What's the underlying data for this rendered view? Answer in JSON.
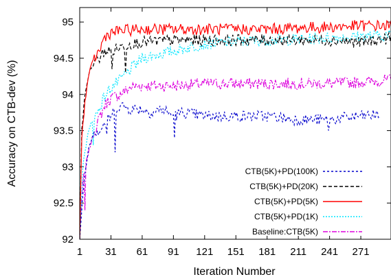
{
  "chart_data": {
    "type": "line",
    "xlabel": "Iteration Number",
    "ylabel": "Accuracy on CTB-dev (%)",
    "xlim": [
      1,
      300
    ],
    "ylim": [
      92,
      95.2
    ],
    "xticks": [
      1,
      31,
      61,
      91,
      121,
      151,
      181,
      211,
      241,
      271
    ],
    "yticks": [
      92,
      92.5,
      93,
      93.5,
      94,
      94.5,
      95
    ],
    "ytick_labels": [
      "92",
      "92.5",
      "93",
      "93.5",
      "94",
      "94.5",
      "95"
    ],
    "legend_position": "bottom-right",
    "series": [
      {
        "name": "CTB(5K)+PD(100K)",
        "color": "#0000cc",
        "dash": "3,3",
        "x_end": 289,
        "points": [
          [
            1,
            92.0
          ],
          [
            5,
            92.8
          ],
          [
            10,
            93.3
          ],
          [
            15,
            93.5
          ],
          [
            20,
            93.5
          ],
          [
            25,
            93.6
          ],
          [
            31,
            93.7
          ],
          [
            35,
            93.8
          ],
          [
            40,
            93.85
          ],
          [
            50,
            93.8
          ],
          [
            60,
            93.8
          ],
          [
            70,
            93.75
          ],
          [
            80,
            93.8
          ],
          [
            91,
            93.7
          ],
          [
            100,
            93.75
          ],
          [
            121,
            93.7
          ],
          [
            151,
            93.7
          ],
          [
            181,
            93.7
          ],
          [
            211,
            93.65
          ],
          [
            241,
            93.65
          ],
          [
            271,
            93.7
          ],
          [
            289,
            93.72
          ]
        ],
        "dips": [
          [
            35,
            93.2
          ],
          [
            92,
            93.4
          ],
          [
            27,
            93.45
          ],
          [
            240,
            93.5
          ]
        ]
      },
      {
        "name": "CTB(5K)+PD(20K)",
        "color": "#000000",
        "dash": "5,3",
        "x_end": 300,
        "points": [
          [
            1,
            92.0
          ],
          [
            3,
            93.5
          ],
          [
            6,
            94.0
          ],
          [
            10,
            94.3
          ],
          [
            15,
            94.45
          ],
          [
            20,
            94.5
          ],
          [
            25,
            94.6
          ],
          [
            31,
            94.6
          ],
          [
            40,
            94.65
          ],
          [
            50,
            94.7
          ],
          [
            61,
            94.72
          ],
          [
            91,
            94.75
          ],
          [
            121,
            94.75
          ],
          [
            151,
            94.75
          ],
          [
            181,
            94.75
          ],
          [
            211,
            94.75
          ],
          [
            241,
            94.75
          ],
          [
            271,
            94.72
          ],
          [
            300,
            94.78
          ]
        ],
        "dips": [
          [
            45,
            94.3
          ],
          [
            32,
            94.35
          ]
        ]
      },
      {
        "name": "CTB(5K)+PD(5K)",
        "color": "#ff0000",
        "dash": "",
        "x_end": 300,
        "points": [
          [
            1,
            92.0
          ],
          [
            3,
            93.4
          ],
          [
            6,
            93.9
          ],
          [
            10,
            94.3
          ],
          [
            15,
            94.5
          ],
          [
            20,
            94.6
          ],
          [
            25,
            94.8
          ],
          [
            31,
            94.85
          ],
          [
            40,
            94.88
          ],
          [
            61,
            94.9
          ],
          [
            91,
            94.9
          ],
          [
            121,
            94.9
          ],
          [
            151,
            94.9
          ],
          [
            181,
            94.9
          ],
          [
            211,
            94.92
          ],
          [
            241,
            94.93
          ],
          [
            271,
            94.95
          ],
          [
            300,
            94.95
          ]
        ],
        "dips": []
      },
      {
        "name": "CTB(5K)+PD(1K)",
        "color": "#00e5ff",
        "dash": "2,2",
        "x_end": 300,
        "points": [
          [
            1,
            92.0
          ],
          [
            4,
            93.0
          ],
          [
            8,
            93.4
          ],
          [
            12,
            93.6
          ],
          [
            18,
            93.75
          ],
          [
            24,
            93.95
          ],
          [
            31,
            94.1
          ],
          [
            40,
            94.2
          ],
          [
            50,
            94.35
          ],
          [
            61,
            94.5
          ],
          [
            76,
            94.55
          ],
          [
            91,
            94.6
          ],
          [
            121,
            94.7
          ],
          [
            151,
            94.73
          ],
          [
            181,
            94.75
          ],
          [
            211,
            94.76
          ],
          [
            241,
            94.78
          ],
          [
            271,
            94.8
          ],
          [
            300,
            94.82
          ]
        ],
        "dips": [
          [
            14,
            93.3
          ]
        ]
      },
      {
        "name": "Baseline:CTB(5K)",
        "color": "#dd00dd",
        "dash": "7,2,2,2",
        "x_end": 300,
        "points": [
          [
            1,
            92.0
          ],
          [
            3,
            92.6
          ],
          [
            5,
            92.9
          ],
          [
            8,
            93.1
          ],
          [
            12,
            93.35
          ],
          [
            18,
            93.6
          ],
          [
            25,
            93.85
          ],
          [
            31,
            93.95
          ],
          [
            40,
            94.0
          ],
          [
            50,
            94.1
          ],
          [
            61,
            94.12
          ],
          [
            91,
            94.12
          ],
          [
            121,
            94.15
          ],
          [
            151,
            94.15
          ],
          [
            181,
            94.15
          ],
          [
            211,
            94.15
          ],
          [
            241,
            94.15
          ],
          [
            271,
            94.17
          ],
          [
            300,
            94.2
          ]
        ],
        "dips": [
          [
            6,
            92.4
          ]
        ]
      }
    ]
  }
}
